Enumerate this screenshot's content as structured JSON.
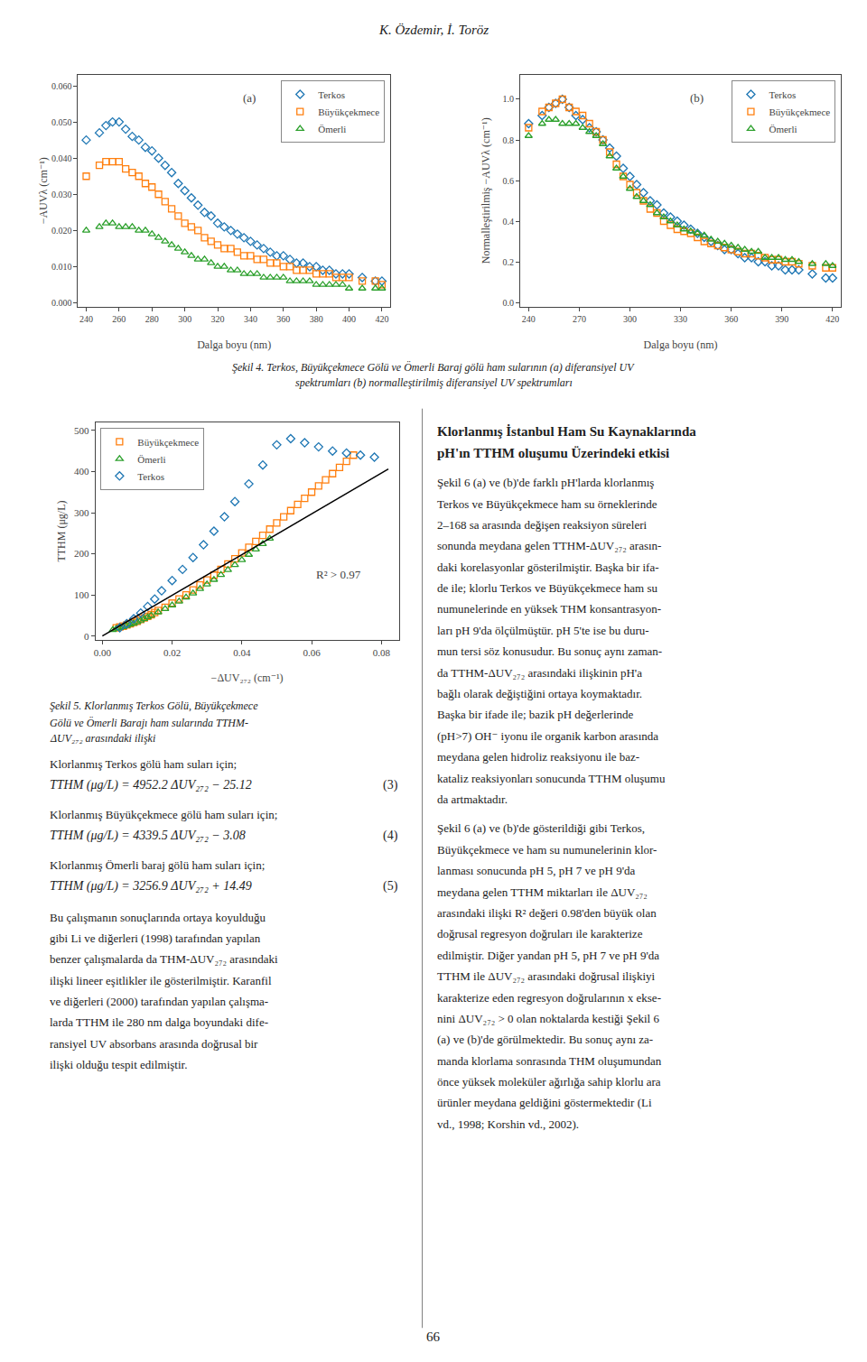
{
  "chart_data": [
    {
      "type": "scatter",
      "xlabel": "Dalga boyu (nm)",
      "ylabel": "−AUVλ (cm⁻¹)",
      "xlim": [
        235,
        425
      ],
      "ylim": [
        -0.001,
        0.063
      ],
      "xticks": [
        240,
        260,
        280,
        300,
        320,
        340,
        360,
        380,
        400,
        420
      ],
      "yticks": [
        {
          "value": 0.0,
          "label": "0.000"
        },
        {
          "value": 0.01,
          "label": "0.010"
        },
        {
          "value": 0.02,
          "label": "0.020"
        },
        {
          "value": 0.03,
          "label": "0.030"
        },
        {
          "value": 0.04,
          "label": "0.040"
        },
        {
          "value": 0.05,
          "label": "0.050"
        },
        {
          "value": 0.06,
          "label": "0.060"
        }
      ],
      "grid": false,
      "legend": "upper right",
      "annotations": [
        "(a)"
      ],
      "series": [
        {
          "name": "Terkos",
          "marker": "diamond",
          "color": "#1f77b4",
          "x": [
            240,
            248,
            252,
            256,
            260,
            264,
            268,
            272,
            276,
            280,
            284,
            288,
            292,
            296,
            300,
            304,
            308,
            312,
            316,
            320,
            324,
            328,
            332,
            336,
            340,
            344,
            348,
            352,
            356,
            360,
            364,
            368,
            372,
            376,
            380,
            384,
            388,
            392,
            396,
            400,
            408,
            416,
            420
          ],
          "values": [
            0.045,
            0.047,
            0.049,
            0.05,
            0.05,
            0.048,
            0.046,
            0.045,
            0.043,
            0.042,
            0.04,
            0.038,
            0.036,
            0.033,
            0.031,
            0.029,
            0.027,
            0.025,
            0.024,
            0.022,
            0.021,
            0.02,
            0.019,
            0.018,
            0.017,
            0.016,
            0.015,
            0.014,
            0.013,
            0.013,
            0.012,
            0.011,
            0.011,
            0.01,
            0.01,
            0.009,
            0.009,
            0.008,
            0.008,
            0.008,
            0.007,
            0.006,
            0.006
          ]
        },
        {
          "name": "Büyükçekmece",
          "marker": "square",
          "color": "#ff7f0e",
          "x": [
            240,
            248,
            252,
            256,
            260,
            264,
            268,
            272,
            276,
            280,
            284,
            288,
            292,
            296,
            300,
            304,
            308,
            312,
            316,
            320,
            324,
            328,
            332,
            336,
            340,
            344,
            348,
            352,
            356,
            360,
            364,
            368,
            372,
            376,
            380,
            384,
            388,
            392,
            396,
            400,
            408,
            416,
            420
          ],
          "values": [
            0.035,
            0.038,
            0.039,
            0.039,
            0.039,
            0.037,
            0.036,
            0.035,
            0.033,
            0.032,
            0.03,
            0.028,
            0.026,
            0.024,
            0.022,
            0.021,
            0.02,
            0.018,
            0.017,
            0.016,
            0.015,
            0.015,
            0.014,
            0.013,
            0.013,
            0.012,
            0.012,
            0.011,
            0.011,
            0.01,
            0.01,
            0.009,
            0.009,
            0.009,
            0.008,
            0.008,
            0.008,
            0.007,
            0.007,
            0.007,
            0.006,
            0.006,
            0.005
          ]
        },
        {
          "name": "Ömerli",
          "marker": "triangle",
          "color": "#2ca02c",
          "x": [
            240,
            248,
            252,
            256,
            260,
            264,
            268,
            272,
            276,
            280,
            284,
            288,
            292,
            296,
            300,
            304,
            308,
            312,
            316,
            320,
            324,
            328,
            332,
            336,
            340,
            344,
            348,
            352,
            356,
            360,
            364,
            368,
            372,
            376,
            380,
            384,
            388,
            392,
            396,
            400,
            408,
            416,
            420
          ],
          "values": [
            0.02,
            0.021,
            0.022,
            0.022,
            0.021,
            0.021,
            0.021,
            0.02,
            0.02,
            0.019,
            0.018,
            0.017,
            0.016,
            0.015,
            0.014,
            0.013,
            0.012,
            0.012,
            0.011,
            0.01,
            0.01,
            0.009,
            0.009,
            0.008,
            0.008,
            0.008,
            0.007,
            0.007,
            0.007,
            0.007,
            0.006,
            0.006,
            0.006,
            0.006,
            0.005,
            0.005,
            0.005,
            0.005,
            0.005,
            0.004,
            0.004,
            0.004,
            0.004
          ]
        }
      ]
    },
    {
      "type": "scatter",
      "xlabel": "Dalga boyu (nm)",
      "ylabel": "Normalleştirilmiş −AUVλ (cm⁻¹)",
      "xlim": [
        235,
        425
      ],
      "ylim": [
        -0.02,
        1.12
      ],
      "xticks": [
        240,
        270,
        300,
        330,
        360,
        390,
        420
      ],
      "yticks": [
        {
          "value": 0.0,
          "label": "0.0"
        },
        0.2,
        0.4,
        0.6,
        0.8,
        {
          "value": 1.0,
          "label": "1.0"
        }
      ],
      "grid": false,
      "legend": "upper right",
      "annotations": [
        "(b)"
      ],
      "series": [
        {
          "name": "Terkos",
          "marker": "diamond",
          "color": "#1f77b4",
          "x": [
            240,
            248,
            252,
            256,
            260,
            264,
            268,
            272,
            276,
            280,
            284,
            288,
            292,
            296,
            300,
            304,
            308,
            312,
            316,
            320,
            324,
            328,
            332,
            336,
            340,
            344,
            348,
            352,
            356,
            360,
            364,
            368,
            372,
            376,
            380,
            384,
            388,
            392,
            396,
            400,
            408,
            416,
            420
          ],
          "values": [
            0.88,
            0.92,
            0.96,
            0.98,
            1.0,
            0.96,
            0.92,
            0.9,
            0.86,
            0.84,
            0.8,
            0.76,
            0.72,
            0.66,
            0.62,
            0.58,
            0.54,
            0.5,
            0.48,
            0.44,
            0.42,
            0.4,
            0.38,
            0.36,
            0.34,
            0.32,
            0.3,
            0.28,
            0.26,
            0.26,
            0.24,
            0.22,
            0.22,
            0.2,
            0.2,
            0.18,
            0.18,
            0.16,
            0.16,
            0.16,
            0.14,
            0.12,
            0.12
          ]
        },
        {
          "name": "Büyükçekmece",
          "marker": "square",
          "color": "#ff7f0e",
          "x": [
            240,
            248,
            252,
            256,
            260,
            264,
            268,
            272,
            276,
            280,
            284,
            288,
            292,
            296,
            300,
            304,
            308,
            312,
            316,
            320,
            324,
            328,
            332,
            336,
            340,
            344,
            348,
            352,
            356,
            360,
            364,
            368,
            372,
            376,
            380,
            384,
            388,
            392,
            396,
            400,
            408,
            416,
            420
          ],
          "values": [
            0.86,
            0.94,
            0.96,
            0.98,
            1.0,
            0.96,
            0.94,
            0.92,
            0.88,
            0.84,
            0.8,
            0.74,
            0.68,
            0.62,
            0.58,
            0.54,
            0.5,
            0.46,
            0.44,
            0.4,
            0.38,
            0.36,
            0.35,
            0.34,
            0.32,
            0.3,
            0.29,
            0.28,
            0.27,
            0.26,
            0.25,
            0.24,
            0.24,
            0.23,
            0.22,
            0.21,
            0.21,
            0.2,
            0.2,
            0.19,
            0.18,
            0.17,
            0.17
          ]
        },
        {
          "name": "Ömerli",
          "marker": "triangle",
          "color": "#2ca02c",
          "x": [
            240,
            248,
            252,
            256,
            260,
            264,
            268,
            272,
            276,
            280,
            284,
            288,
            292,
            296,
            300,
            304,
            308,
            312,
            316,
            320,
            324,
            328,
            332,
            336,
            340,
            344,
            348,
            352,
            356,
            360,
            364,
            368,
            372,
            376,
            380,
            384,
            388,
            392,
            396,
            400,
            408,
            416,
            420
          ],
          "values": [
            0.82,
            0.88,
            0.9,
            0.9,
            0.88,
            0.88,
            0.88,
            0.86,
            0.84,
            0.82,
            0.78,
            0.72,
            0.66,
            0.62,
            0.56,
            0.52,
            0.5,
            0.48,
            0.44,
            0.42,
            0.4,
            0.38,
            0.36,
            0.35,
            0.34,
            0.33,
            0.31,
            0.3,
            0.29,
            0.28,
            0.27,
            0.26,
            0.25,
            0.25,
            0.22,
            0.22,
            0.22,
            0.21,
            0.21,
            0.2,
            0.19,
            0.19,
            0.18
          ]
        }
      ]
    },
    {
      "type": "scatter",
      "xlabel": "−ΔUV₂₇₂ (cm⁻¹)",
      "ylabel": "TTHM (μg/L)",
      "xlim": [
        -0.002,
        0.085
      ],
      "ylim": [
        -10,
        520
      ],
      "xticks": [
        {
          "value": 0.0,
          "label": "0.00"
        },
        {
          "value": 0.02,
          "label": "0.02"
        },
        {
          "value": 0.04,
          "label": "0.04"
        },
        {
          "value": 0.06,
          "label": "0.06"
        },
        {
          "value": 0.08,
          "label": "0.08"
        }
      ],
      "yticks": [
        0,
        100,
        200,
        300,
        400,
        500
      ],
      "grid": false,
      "legend": "upper left",
      "annotations": [
        "R² > 0.97"
      ],
      "series": [
        {
          "name": "Büyükçekmece",
          "marker": "square",
          "color": "#ff7f0e",
          "x": [
            0.004,
            0.005,
            0.006,
            0.007,
            0.008,
            0.009,
            0.01,
            0.011,
            0.012,
            0.013,
            0.014,
            0.015,
            0.016,
            0.018,
            0.02,
            0.022,
            0.024,
            0.026,
            0.028,
            0.03,
            0.032,
            0.034,
            0.036,
            0.038,
            0.04,
            0.042,
            0.044,
            0.046,
            0.048,
            0.05,
            0.052,
            0.054,
            0.056,
            0.058,
            0.06,
            0.062,
            0.064,
            0.066,
            0.068,
            0.07,
            0.072
          ],
          "values": [
            20,
            22,
            24,
            27,
            30,
            33,
            36,
            40,
            44,
            48,
            52,
            57,
            62,
            70,
            80,
            90,
            100,
            112,
            124,
            136,
            148,
            162,
            175,
            188,
            202,
            216,
            230,
            245,
            260,
            275,
            290,
            305,
            320,
            335,
            350,
            365,
            380,
            395,
            410,
            425,
            440
          ]
        },
        {
          "name": "Ömerli",
          "marker": "triangle",
          "color": "#2ca02c",
          "x": [
            0.003,
            0.004,
            0.005,
            0.006,
            0.007,
            0.008,
            0.009,
            0.01,
            0.011,
            0.012,
            0.013,
            0.014,
            0.016,
            0.018,
            0.02,
            0.022,
            0.024,
            0.026,
            0.028,
            0.03,
            0.032,
            0.034,
            0.036,
            0.038,
            0.04,
            0.042,
            0.044,
            0.046,
            0.048
          ],
          "values": [
            15,
            18,
            20,
            22,
            25,
            28,
            31,
            34,
            38,
            42,
            46,
            50,
            58,
            66,
            75,
            84,
            94,
            104,
            115,
            126,
            137,
            149,
            161,
            173,
            185,
            198,
            211,
            224,
            237
          ]
        },
        {
          "name": "Terkos",
          "marker": "diamond",
          "color": "#1f77b4",
          "x": [
            0.005,
            0.007,
            0.009,
            0.011,
            0.013,
            0.015,
            0.017,
            0.02,
            0.023,
            0.026,
            0.029,
            0.032,
            0.035,
            0.038,
            0.042,
            0.046,
            0.05,
            0.054,
            0.058,
            0.062,
            0.066,
            0.07,
            0.074,
            0.078
          ],
          "values": [
            20,
            30,
            42,
            56,
            72,
            90,
            110,
            135,
            162,
            191,
            222,
            255,
            290,
            327,
            370,
            416,
            465,
            480,
            470,
            460,
            450,
            445,
            440,
            435
          ]
        },
        {
          "type": "line",
          "line_style": "solid",
          "color": "#000000",
          "x": [
            0.0,
            0.082
          ],
          "values": [
            0.0,
            406.0
          ]
        }
      ]
    }
  ],
  "annotations": [
    [
      "K. Özdemir, İ. Toröz"
    ],
    [
      "Şekil 4. Terkos, Büyükçekmece Gölü ve Ömerli Baraj gölü ham sularının (a) diferansiyel UV",
      "spektrumları (b) normalleştirilmiş diferansiyel UV spektrumları"
    ],
    [
      "Şekil 5. Klorlanmış Terkos Gölü, Büyükçekmece",
      "Gölü ve Ömerli Barajı ham sularında TTHM-",
      "ΔUV₂₇₂ arasındaki ilişki"
    ],
    [
      "Klorlanmış Terkos gölü ham suları için;"
    ],
    [
      "TTHM (μg/L) = 4952.2 ΔUV₂₇₂ − 25.12"
    ],
    [
      "(3)"
    ],
    [
      "Klorlanmış Büyükçekmece gölü ham suları için;"
    ],
    [
      "TTHM (μg/L) = 4339.5 ΔUV₂₇₂ − 3.08"
    ],
    [
      "(4)"
    ],
    [
      "Klorlanmış Ömerli baraj gölü ham suları için;"
    ],
    [
      "TTHM (μg/L) = 3256.9 ΔUV₂₇₂ + 14.49"
    ],
    [
      "(5)"
    ],
    [
      "Bu çalışmanın sonuçlarında ortaya koyulduğu",
      "gibi Li ve diğerleri (1998) tarafından yapılan",
      "benzer çalışmalarda da THM-ΔUV₂₇₂ arasındaki",
      "ilişki lineer eşitlikler ile gösterilmiştir. Karanfil",
      "ve diğerleri (2000) tarafından yapılan çalışma-",
      "larda TTHM ile 280 nm dalga boyundaki dife-",
      "ransiyel UV absorbans arasında doğrusal bir",
      "ilişki olduğu tespit edilmiştir."
    ],
    [
      "Klorlanmış İstanbul Ham Su Kaynaklarında",
      "pH'ın TTHM oluşumu Üzerindeki etkisi"
    ],
    [
      "Şekil 6 (a) ve (b)'de farklı pH'larda klorlanmış",
      "Terkos ve Büyükçekmece ham su örneklerinde",
      "2–168 sa arasında değişen reaksiyon süreleri",
      "sonunda meydana gelen TTHM-ΔUV₂₇₂ arasın-",
      "daki korelasyonlar gösterilmiştir. Başka bir ifa-",
      "de ile; klorlu Terkos ve Büyükçekmece ham su",
      "numunelerinde en yüksek THM konsantrasyon-",
      "ları pH 9'da ölçülmüştür. pH 5'te ise bu duru-",
      "mun tersi söz konusudur. Bu sonuç aynı zaman-",
      "da TTHM-ΔUV₂₇₂ arasındaki ilişkinin pH'a",
      "bağlı olarak değiştiğini ortaya koymaktadır.",
      "Başka bir ifade ile; bazik pH değerlerinde",
      "(pH>7) OH⁻ iyonu ile organik karbon arasında",
      "meydana gelen hidroliz reaksiyonu ile baz-",
      "kataliz reaksiyonları sonucunda TTHM oluşumu",
      "da artmaktadır."
    ],
    [
      "Şekil 6 (a) ve (b)'de gösterildiği gibi Terkos,",
      "Büyükçekmece ve ham su numunelerinin klor-",
      "lanması sonucunda pH 5, pH 7 ve pH 9'da",
      "meydana gelen TTHM miktarları ile ΔUV₂₇₂",
      "arasındaki ilişki R² değeri 0.98'den büyük olan",
      "doğrusal regresyon doğruları ile karakterize",
      "edilmiştir. Diğer yandan pH 5, pH 7 ve pH 9'da",
      "TTHM ile ΔUV₂₇₂ arasındaki doğrusal ilişkiyi",
      "karakterize eden regresyon doğrularının x ekse-",
      "nini ΔUV₂₇₂ > 0 olan noktalarda kestiği Şekil 6",
      "(a) ve (b)'de görülmektedir. Bu sonuç aynı za-",
      "manda klorlama sonrasında THM oluşumundan",
      "önce yüksek moleküler ağırlığa sahip klorlu ara",
      "ürünler meydana geldiğini göstermektedir (Li",
      "vd., 1998; Korshin vd., 2002)."
    ],
    [
      "66"
    ]
  ]
}
